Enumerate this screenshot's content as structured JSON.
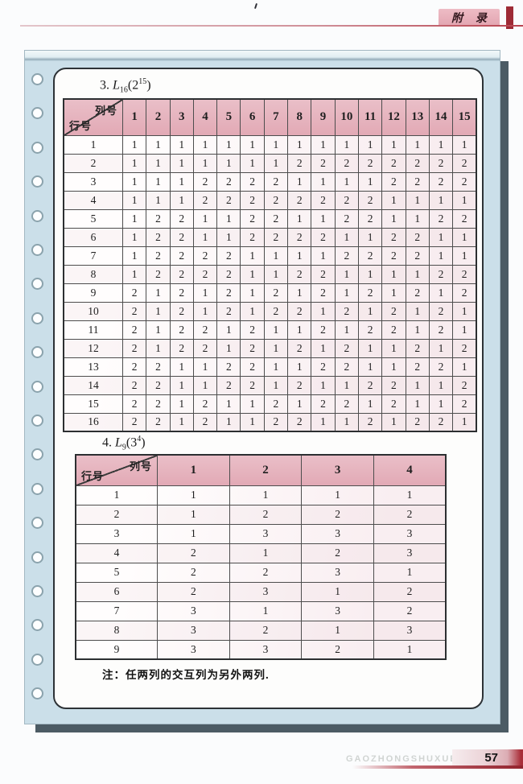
{
  "header": {
    "badge": "附 录"
  },
  "tables": [
    {
      "title": {
        "prefix": "3.",
        "symbol": "L",
        "subscript": "16",
        "arg_open": "(2",
        "exponent": "15",
        "arg_close": ")"
      },
      "corner_top": "列号",
      "corner_bottom": "行号",
      "columns": [
        "1",
        "2",
        "3",
        "4",
        "5",
        "6",
        "7",
        "8",
        "9",
        "10",
        "11",
        "12",
        "13",
        "14",
        "15"
      ],
      "row_labels": [
        "1",
        "2",
        "3",
        "4",
        "5",
        "6",
        "7",
        "8",
        "9",
        "10",
        "11",
        "12",
        "13",
        "14",
        "15",
        "16"
      ],
      "rows": [
        [
          1,
          1,
          1,
          1,
          1,
          1,
          1,
          1,
          1,
          1,
          1,
          1,
          1,
          1,
          1
        ],
        [
          1,
          1,
          1,
          1,
          1,
          1,
          1,
          2,
          2,
          2,
          2,
          2,
          2,
          2,
          2
        ],
        [
          1,
          1,
          1,
          2,
          2,
          2,
          2,
          1,
          1,
          1,
          1,
          2,
          2,
          2,
          2
        ],
        [
          1,
          1,
          1,
          2,
          2,
          2,
          2,
          2,
          2,
          2,
          2,
          1,
          1,
          1,
          1
        ],
        [
          1,
          2,
          2,
          1,
          1,
          2,
          2,
          1,
          1,
          2,
          2,
          1,
          1,
          2,
          2
        ],
        [
          1,
          2,
          2,
          1,
          1,
          2,
          2,
          2,
          2,
          1,
          1,
          2,
          2,
          1,
          1
        ],
        [
          1,
          2,
          2,
          2,
          2,
          1,
          1,
          1,
          1,
          2,
          2,
          2,
          2,
          1,
          1
        ],
        [
          1,
          2,
          2,
          2,
          2,
          1,
          1,
          2,
          2,
          1,
          1,
          1,
          1,
          2,
          2
        ],
        [
          2,
          1,
          2,
          1,
          2,
          1,
          2,
          1,
          2,
          1,
          2,
          1,
          2,
          1,
          2
        ],
        [
          2,
          1,
          2,
          1,
          2,
          1,
          2,
          2,
          1,
          2,
          1,
          2,
          1,
          2,
          1
        ],
        [
          2,
          1,
          2,
          2,
          1,
          2,
          1,
          1,
          2,
          1,
          2,
          2,
          1,
          2,
          1
        ],
        [
          2,
          1,
          2,
          2,
          1,
          2,
          1,
          2,
          1,
          2,
          1,
          1,
          2,
          1,
          2
        ],
        [
          2,
          2,
          1,
          1,
          2,
          2,
          1,
          1,
          2,
          2,
          1,
          1,
          2,
          2,
          1
        ],
        [
          2,
          2,
          1,
          1,
          2,
          2,
          1,
          2,
          1,
          1,
          2,
          2,
          1,
          1,
          2
        ],
        [
          2,
          2,
          1,
          2,
          1,
          1,
          2,
          1,
          2,
          2,
          1,
          2,
          1,
          1,
          2
        ],
        [
          2,
          2,
          1,
          2,
          1,
          1,
          2,
          2,
          1,
          1,
          2,
          1,
          2,
          2,
          1
        ]
      ]
    },
    {
      "title": {
        "prefix": "4.",
        "symbol": "L",
        "subscript": "9",
        "arg_open": "(3",
        "exponent": "4",
        "arg_close": ")"
      },
      "corner_top": "列号",
      "corner_bottom": "行号",
      "columns": [
        "1",
        "2",
        "3",
        "4"
      ],
      "row_labels": [
        "1",
        "2",
        "3",
        "4",
        "5",
        "6",
        "7",
        "8",
        "9"
      ],
      "rows": [
        [
          1,
          1,
          1,
          1
        ],
        [
          1,
          2,
          2,
          2
        ],
        [
          1,
          3,
          3,
          3
        ],
        [
          2,
          1,
          2,
          3
        ],
        [
          2,
          2,
          3,
          1
        ],
        [
          2,
          3,
          1,
          2
        ],
        [
          3,
          1,
          3,
          2
        ],
        [
          3,
          2,
          1,
          3
        ],
        [
          3,
          3,
          2,
          1
        ]
      ]
    }
  ],
  "note": "注：任两列的交互列为另外两列.",
  "footer": {
    "watermark": "GAOZHONGSHUXUE",
    "page_number": "57"
  },
  "colors": {
    "header_pink": "#e5aeb9",
    "card_blue": "#cbdfe9",
    "accent_red": "#9e2b36",
    "shadow": "#4c5b64"
  }
}
